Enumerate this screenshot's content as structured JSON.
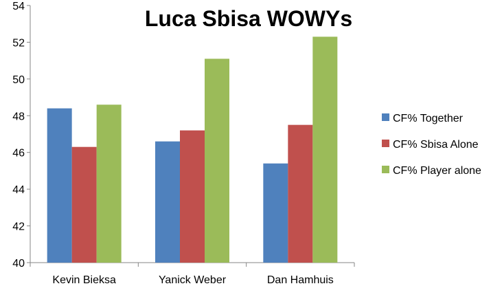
{
  "chart_data": {
    "type": "bar",
    "title": "Luca Sbisa WOWYs",
    "categories": [
      "Kevin Bieksa",
      "Yanick Weber",
      "Dan Hamhuis"
    ],
    "series": [
      {
        "name": "CF% Together",
        "color": "#4f81bd",
        "values": [
          48.4,
          46.6,
          45.4
        ]
      },
      {
        "name": "CF% Sbisa Alone",
        "color": "#c0504d",
        "values": [
          46.3,
          47.2,
          47.5
        ]
      },
      {
        "name": "CF% Player alone",
        "color": "#9bbb59",
        "values": [
          48.6,
          51.1,
          52.3
        ]
      }
    ],
    "ylim": [
      40,
      54
    ],
    "yticks": [
      "40",
      "42",
      "44",
      "46",
      "48",
      "50",
      "52",
      "54"
    ],
    "grid": false,
    "legend": "right"
  }
}
